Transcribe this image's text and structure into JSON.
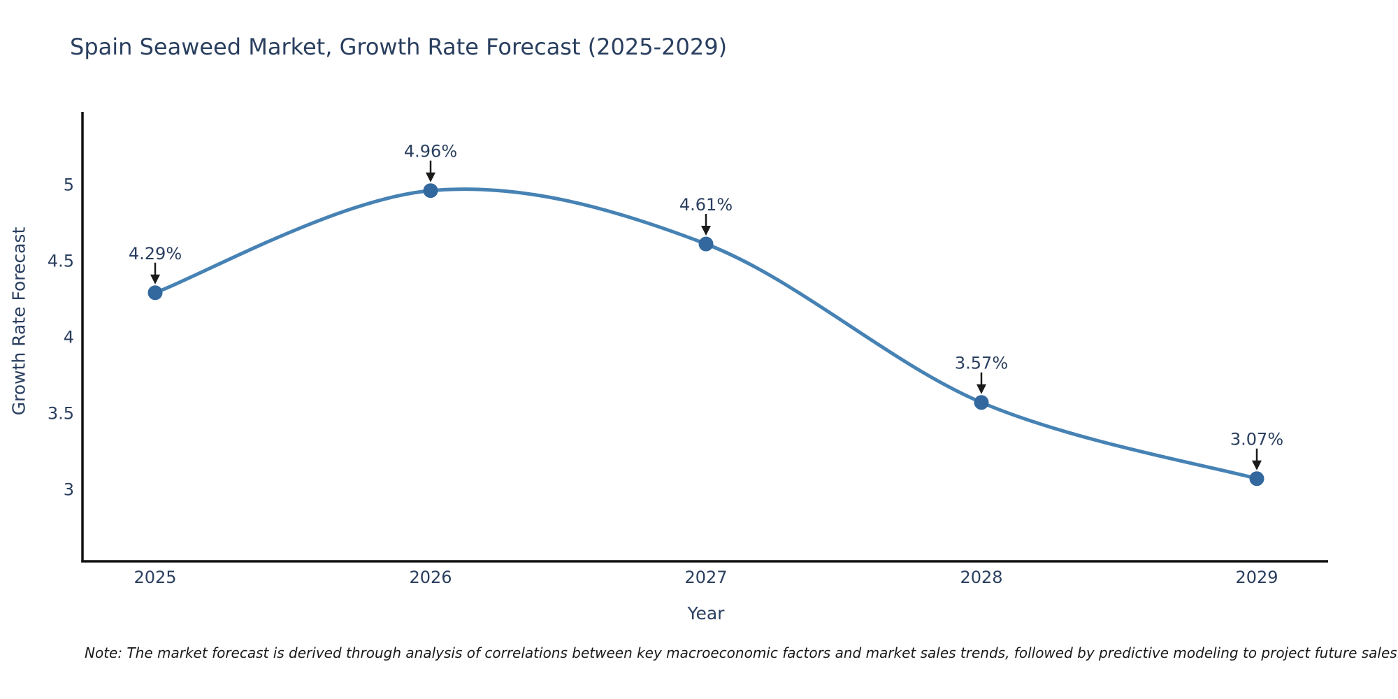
{
  "title": "Spain Seaweed Market, Growth Rate Forecast (2025-2029)",
  "note": "Note: The market forecast is derived through analysis of correlations between key macroeconomic factors and market sales trends, followed by predictive modeling to project future sales.",
  "chart_data": {
    "type": "line",
    "title": "Spain Seaweed Market, Growth Rate Forecast (2025-2029)",
    "xlabel": "Year",
    "ylabel": "Growth Rate Forecast",
    "x": [
      2025,
      2026,
      2027,
      2028,
      2029
    ],
    "series": [
      {
        "name": "Growth Rate Forecast",
        "values": [
          4.29,
          4.96,
          4.61,
          3.57,
          3.07
        ],
        "point_labels": [
          "4.29%",
          "4.96%",
          "4.61%",
          "3.57%",
          "3.07%"
        ]
      }
    ],
    "xtick_labels": [
      "2025",
      "2026",
      "2027",
      "2028",
      "2029"
    ],
    "ytick_values": [
      3,
      3.5,
      4,
      4.5,
      5
    ],
    "ytick_labels": [
      "3",
      "3.5",
      "4",
      "4.5",
      "5"
    ],
    "xlim": [
      2024.74,
      2029.26
    ],
    "ylim": [
      2.52,
      5.47
    ],
    "line_shape": "spline",
    "grid": false,
    "legend": "none",
    "annotations_style": "black arrow pointing down to each marker with percent label above",
    "colors": {
      "line": "#4682b4",
      "marker": "#32689e",
      "arrow": "#1a1a1a",
      "text": "#2a3f5f",
      "axis_line": "#111111",
      "background": "#ffffff"
    }
  }
}
